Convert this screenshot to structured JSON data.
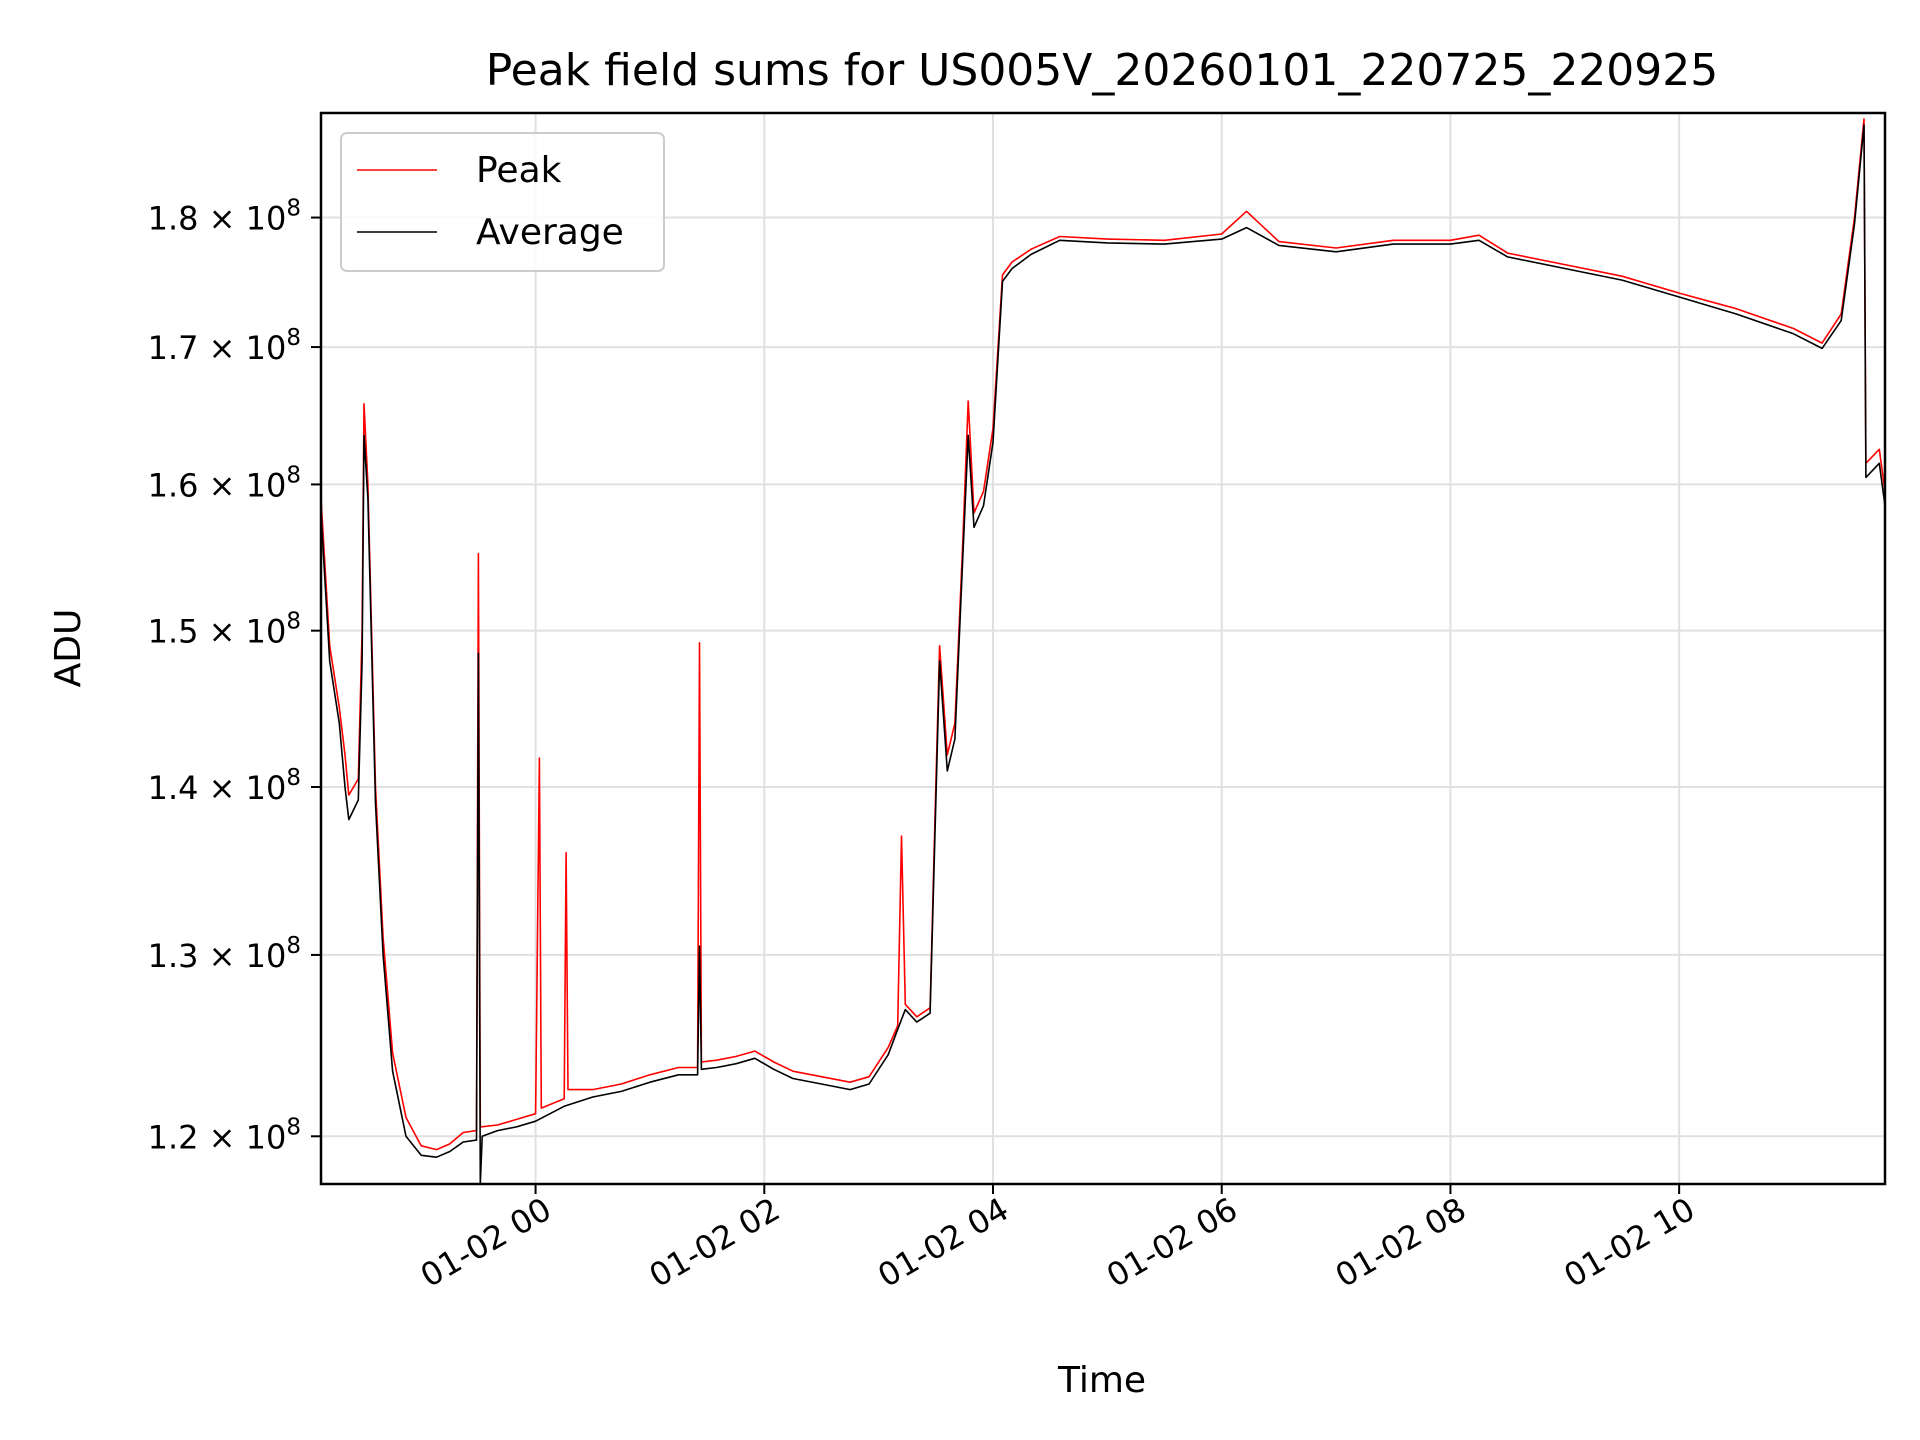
{
  "chart_data": {
    "type": "line",
    "title": "Peak field sums for US005V_20260101_220725_220925",
    "xlabel": "Time",
    "ylabel": "ADU",
    "x_range": [
      "2026-01-01T22:07:25",
      "2026-01-02T11:48:00"
    ],
    "y_scale": "log",
    "ylim": [
      117500000,
      188500000
    ],
    "grid": true,
    "legend_position": "top-left",
    "x_ticks": [
      {
        "t": "2026-01-02T00:00:00",
        "label": "01-02 00"
      },
      {
        "t": "2026-01-02T02:00:00",
        "label": "01-02 02"
      },
      {
        "t": "2026-01-02T04:00:00",
        "label": "01-02 04"
      },
      {
        "t": "2026-01-02T06:00:00",
        "label": "01-02 06"
      },
      {
        "t": "2026-01-02T08:00:00",
        "label": "01-02 08"
      },
      {
        "t": "2026-01-02T10:00:00",
        "label": "01-02 10"
      }
    ],
    "y_ticks": [
      {
        "value": 120000000,
        "mantissa": "1.2",
        "exponent": "8"
      },
      {
        "value": 130000000,
        "mantissa": "1.3",
        "exponent": "8"
      },
      {
        "value": 140000000,
        "mantissa": "1.4",
        "exponent": "8"
      },
      {
        "value": 150000000,
        "mantissa": "1.5",
        "exponent": "8"
      },
      {
        "value": 160000000,
        "mantissa": "1.6",
        "exponent": "8"
      },
      {
        "value": 170000000,
        "mantissa": "1.7",
        "exponent": "8"
      },
      {
        "value": 180000000,
        "mantissa": "1.8",
        "exponent": "8"
      }
    ],
    "tick_times_label": "×10",
    "series": [
      {
        "name": "Peak",
        "color": "#ff0000",
        "points": [
          [
            "2026-01-01T22:07:25",
            159000000
          ],
          [
            "2026-01-01T22:12:00",
            149000000
          ],
          [
            "2026-01-01T22:17:00",
            145000000
          ],
          [
            "2026-01-01T22:20:00",
            142000000
          ],
          [
            "2026-01-01T22:22:00",
            139500000
          ],
          [
            "2026-01-01T22:27:00",
            140500000
          ],
          [
            "2026-01-01T22:29:00",
            150000000
          ],
          [
            "2026-01-01T22:30:00",
            165800000
          ],
          [
            "2026-01-01T22:32:00",
            160000000
          ],
          [
            "2026-01-01T22:36:00",
            140000000
          ],
          [
            "2026-01-01T22:40:00",
            131000000
          ],
          [
            "2026-01-01T22:45:00",
            124500000
          ],
          [
            "2026-01-01T22:52:00",
            121000000
          ],
          [
            "2026-01-01T23:00:00",
            119500000
          ],
          [
            "2026-01-01T23:08:00",
            119300000
          ],
          [
            "2026-01-01T23:15:00",
            119600000
          ],
          [
            "2026-01-01T23:22:00",
            120200000
          ],
          [
            "2026-01-01T23:29:00",
            120300000
          ],
          [
            "2026-01-01T23:30:00",
            155200000
          ],
          [
            "2026-01-01T23:31:00",
            120500000
          ],
          [
            "2026-01-01T23:40:00",
            120600000
          ],
          [
            "2026-01-01T23:50:00",
            120900000
          ],
          [
            "2026-01-02T00:00:00",
            121200000
          ],
          [
            "2026-01-02T00:02:00",
            141800000
          ],
          [
            "2026-01-02T00:03:00",
            121500000
          ],
          [
            "2026-01-02T00:15:00",
            122000000
          ],
          [
            "2026-01-02T00:16:00",
            136000000
          ],
          [
            "2026-01-02T00:17:00",
            122500000
          ],
          [
            "2026-01-02T00:30:00",
            122500000
          ],
          [
            "2026-01-02T00:45:00",
            122800000
          ],
          [
            "2026-01-02T01:00:00",
            123300000
          ],
          [
            "2026-01-02T01:15:00",
            123700000
          ],
          [
            "2026-01-02T01:25:00",
            123700000
          ],
          [
            "2026-01-02T01:26:00",
            149200000
          ],
          [
            "2026-01-02T01:27:00",
            124000000
          ],
          [
            "2026-01-02T01:35:00",
            124100000
          ],
          [
            "2026-01-02T01:45:00",
            124300000
          ],
          [
            "2026-01-02T01:55:00",
            124600000
          ],
          [
            "2026-01-02T02:05:00",
            124000000
          ],
          [
            "2026-01-02T02:15:00",
            123500000
          ],
          [
            "2026-01-02T02:30:00",
            123200000
          ],
          [
            "2026-01-02T02:45:00",
            122900000
          ],
          [
            "2026-01-02T02:55:00",
            123200000
          ],
          [
            "2026-01-02T03:05:00",
            124800000
          ],
          [
            "2026-01-02T03:10:00",
            126000000
          ],
          [
            "2026-01-02T03:12:00",
            137000000
          ],
          [
            "2026-01-02T03:14:00",
            127200000
          ],
          [
            "2026-01-02T03:20:00",
            126500000
          ],
          [
            "2026-01-02T03:27:00",
            127000000
          ],
          [
            "2026-01-02T03:30:00",
            140000000
          ],
          [
            "2026-01-02T03:32:00",
            149000000
          ],
          [
            "2026-01-02T03:36:00",
            142000000
          ],
          [
            "2026-01-02T03:40:00",
            144000000
          ],
          [
            "2026-01-02T03:44:00",
            155500000
          ],
          [
            "2026-01-02T03:47:00",
            166000000
          ],
          [
            "2026-01-02T03:50:00",
            158000000
          ],
          [
            "2026-01-02T03:55:00",
            159500000
          ],
          [
            "2026-01-02T04:00:00",
            164000000
          ],
          [
            "2026-01-02T04:05:00",
            175500000
          ],
          [
            "2026-01-02T04:10:00",
            176500000
          ],
          [
            "2026-01-02T04:20:00",
            177500000
          ],
          [
            "2026-01-02T04:35:00",
            178500000
          ],
          [
            "2026-01-02T05:00:00",
            178300000
          ],
          [
            "2026-01-02T05:30:00",
            178200000
          ],
          [
            "2026-01-02T06:00:00",
            178700000
          ],
          [
            "2026-01-02T06:13:00",
            180500000
          ],
          [
            "2026-01-02T06:30:00",
            178100000
          ],
          [
            "2026-01-02T07:00:00",
            177600000
          ],
          [
            "2026-01-02T07:30:00",
            178200000
          ],
          [
            "2026-01-02T08:00:00",
            178200000
          ],
          [
            "2026-01-02T08:15:00",
            178600000
          ],
          [
            "2026-01-02T08:30:00",
            177200000
          ],
          [
            "2026-01-02T09:00:00",
            176300000
          ],
          [
            "2026-01-02T09:30:00",
            175400000
          ],
          [
            "2026-01-02T10:00:00",
            174100000
          ],
          [
            "2026-01-02T10:30:00",
            172900000
          ],
          [
            "2026-01-02T11:00:00",
            171400000
          ],
          [
            "2026-01-02T11:15:00",
            170300000
          ],
          [
            "2026-01-02T11:25:00",
            172500000
          ],
          [
            "2026-01-02T11:32:00",
            180000000
          ],
          [
            "2026-01-02T11:37:00",
            188000000
          ],
          [
            "2026-01-02T11:38:00",
            161500000
          ],
          [
            "2026-01-02T11:45:00",
            162500000
          ],
          [
            "2026-01-02T11:48:00",
            159500000
          ]
        ]
      },
      {
        "name": "Average",
        "color": "#000000",
        "points": [
          [
            "2026-01-01T22:07:25",
            158000000
          ],
          [
            "2026-01-01T22:12:00",
            148000000
          ],
          [
            "2026-01-01T22:17:00",
            144000000
          ],
          [
            "2026-01-01T22:20:00",
            140000000
          ],
          [
            "2026-01-01T22:22:00",
            138000000
          ],
          [
            "2026-01-01T22:27:00",
            139200000
          ],
          [
            "2026-01-01T22:29:00",
            148000000
          ],
          [
            "2026-01-01T22:30:00",
            163500000
          ],
          [
            "2026-01-01T22:32:00",
            159000000
          ],
          [
            "2026-01-01T22:36:00",
            139000000
          ],
          [
            "2026-01-01T22:40:00",
            130000000
          ],
          [
            "2026-01-01T22:45:00",
            123500000
          ],
          [
            "2026-01-01T22:52:00",
            120000000
          ],
          [
            "2026-01-01T23:00:00",
            119000000
          ],
          [
            "2026-01-01T23:08:00",
            118900000
          ],
          [
            "2026-01-01T23:15:00",
            119200000
          ],
          [
            "2026-01-01T23:22:00",
            119700000
          ],
          [
            "2026-01-01T23:29:00",
            119800000
          ],
          [
            "2026-01-01T23:30:00",
            148500000
          ],
          [
            "2026-01-01T23:31:00",
            117500000
          ],
          [
            "2026-01-01T23:32:00",
            120000000
          ],
          [
            "2026-01-01T23:40:00",
            120300000
          ],
          [
            "2026-01-01T23:50:00",
            120500000
          ],
          [
            "2026-01-02T00:00:00",
            120800000
          ],
          [
            "2026-01-02T00:15:00",
            121600000
          ],
          [
            "2026-01-02T00:30:00",
            122100000
          ],
          [
            "2026-01-02T00:45:00",
            122400000
          ],
          [
            "2026-01-02T01:00:00",
            122900000
          ],
          [
            "2026-01-02T01:15:00",
            123300000
          ],
          [
            "2026-01-02T01:25:00",
            123300000
          ],
          [
            "2026-01-02T01:26:00",
            130500000
          ],
          [
            "2026-01-02T01:27:00",
            123600000
          ],
          [
            "2026-01-02T01:35:00",
            123700000
          ],
          [
            "2026-01-02T01:45:00",
            123900000
          ],
          [
            "2026-01-02T01:55:00",
            124200000
          ],
          [
            "2026-01-02T02:05:00",
            123600000
          ],
          [
            "2026-01-02T02:15:00",
            123100000
          ],
          [
            "2026-01-02T02:30:00",
            122800000
          ],
          [
            "2026-01-02T02:45:00",
            122500000
          ],
          [
            "2026-01-02T02:55:00",
            122800000
          ],
          [
            "2026-01-02T03:05:00",
            124400000
          ],
          [
            "2026-01-02T03:10:00",
            125800000
          ],
          [
            "2026-01-02T03:14:00",
            126900000
          ],
          [
            "2026-01-02T03:20:00",
            126200000
          ],
          [
            "2026-01-02T03:27:00",
            126700000
          ],
          [
            "2026-01-02T03:30:00",
            139000000
          ],
          [
            "2026-01-02T03:32:00",
            148000000
          ],
          [
            "2026-01-02T03:36:00",
            141000000
          ],
          [
            "2026-01-02T03:40:00",
            143000000
          ],
          [
            "2026-01-02T03:44:00",
            154500000
          ],
          [
            "2026-01-02T03:47:00",
            163500000
          ],
          [
            "2026-01-02T03:50:00",
            157000000
          ],
          [
            "2026-01-02T03:55:00",
            158500000
          ],
          [
            "2026-01-02T04:00:00",
            163000000
          ],
          [
            "2026-01-02T04:05:00",
            175000000
          ],
          [
            "2026-01-02T04:10:00",
            176000000
          ],
          [
            "2026-01-02T04:20:00",
            177100000
          ],
          [
            "2026-01-02T04:35:00",
            178200000
          ],
          [
            "2026-01-02T05:00:00",
            178000000
          ],
          [
            "2026-01-02T05:30:00",
            177900000
          ],
          [
            "2026-01-02T06:00:00",
            178300000
          ],
          [
            "2026-01-02T06:13:00",
            179200000
          ],
          [
            "2026-01-02T06:30:00",
            177800000
          ],
          [
            "2026-01-02T07:00:00",
            177300000
          ],
          [
            "2026-01-02T07:30:00",
            177900000
          ],
          [
            "2026-01-02T08:00:00",
            177900000
          ],
          [
            "2026-01-02T08:15:00",
            178200000
          ],
          [
            "2026-01-02T08:30:00",
            176900000
          ],
          [
            "2026-01-02T09:00:00",
            176000000
          ],
          [
            "2026-01-02T09:30:00",
            175100000
          ],
          [
            "2026-01-02T10:00:00",
            173800000
          ],
          [
            "2026-01-02T10:30:00",
            172500000
          ],
          [
            "2026-01-02T11:00:00",
            171000000
          ],
          [
            "2026-01-02T11:15:00",
            169900000
          ],
          [
            "2026-01-02T11:25:00",
            172000000
          ],
          [
            "2026-01-02T11:32:00",
            179500000
          ],
          [
            "2026-01-02T11:37:00",
            187500000
          ],
          [
            "2026-01-02T11:38:00",
            160500000
          ],
          [
            "2026-01-02T11:45:00",
            161500000
          ],
          [
            "2026-01-02T11:48:00",
            158500000
          ]
        ]
      }
    ]
  }
}
